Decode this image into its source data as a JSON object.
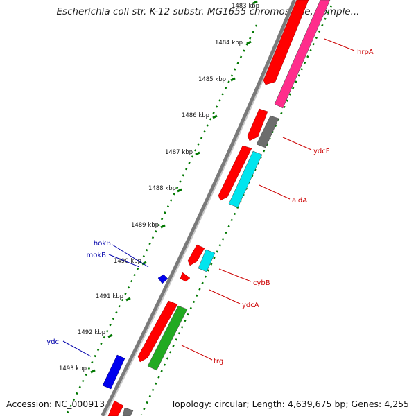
{
  "title": "Escherichia coli str. K-12 substr. MG1655 chromosome, comple...",
  "footer": {
    "accession": "Accession: NC_000913",
    "topology": "Topology: circular; Length: 4,639,675 bp; Genes: 4,255"
  },
  "colors": {
    "backbone": "#7a7a7a",
    "cds_forward": "#ff0000",
    "gene_pink": "#ff2d8c",
    "gene_gray": "#6d6d6d",
    "gene_cyan": "#00e5ee",
    "gene_green": "#22aa22",
    "gene_blue": "#0000ee",
    "tick": "#007700",
    "label_red": "#cc0000",
    "label_blue": "#0000aa"
  },
  "ticks": [
    {
      "label": "1483 kbp",
      "kbp": 1483
    },
    {
      "label": "1484 kbp",
      "kbp": 1484
    },
    {
      "label": "1485 kbp",
      "kbp": 1485
    },
    {
      "label": "1486 kbp",
      "kbp": 1486
    },
    {
      "label": "1487 kbp",
      "kbp": 1487
    },
    {
      "label": "1488 kbp",
      "kbp": 1488
    },
    {
      "label": "1489 kbp",
      "kbp": 1489
    },
    {
      "label": "1490 kbp",
      "kbp": 1490
    },
    {
      "label": "1491 kbp",
      "kbp": 1491
    },
    {
      "label": "1492 kbp",
      "kbp": 1492
    },
    {
      "label": "1493 kbp",
      "kbp": 1493
    }
  ],
  "gene_labels": [
    {
      "name": "hrpA",
      "side": "right"
    },
    {
      "name": "ydcF",
      "side": "right"
    },
    {
      "name": "aldA",
      "side": "right"
    },
    {
      "name": "cybB",
      "side": "right"
    },
    {
      "name": "ydcA",
      "side": "right"
    },
    {
      "name": "trg",
      "side": "right"
    },
    {
      "name": "hokB",
      "side": "left"
    },
    {
      "name": "mokB",
      "side": "left"
    },
    {
      "name": "ydcI",
      "side": "left"
    }
  ]
}
